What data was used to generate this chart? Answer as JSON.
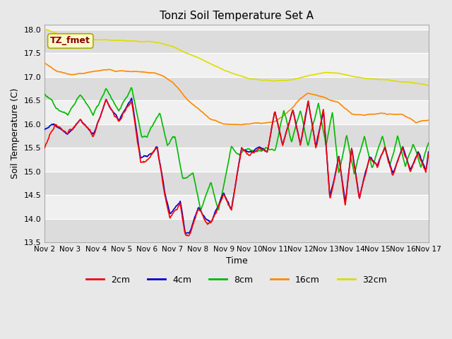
{
  "title": "Tonzi Soil Temperature Set A",
  "xlabel": "Time",
  "ylabel": "Soil Temperature (C)",
  "ylim": [
    13.5,
    18.1
  ],
  "annotation_text": "TZ_fmet",
  "annotation_color": "#8B0000",
  "annotation_bg": "#FFFACD",
  "annotation_border": "#AAAA00",
  "series_labels": [
    "2cm",
    "4cm",
    "8cm",
    "16cm",
    "32cm"
  ],
  "series_colors": [
    "#FF0000",
    "#0000CC",
    "#00BB00",
    "#FF8800",
    "#DDDD00"
  ],
  "xtick_labels": [
    "Nov 2",
    "Nov 3",
    "Nov 4",
    "Nov 5",
    "Nov 6",
    "Nov 7",
    "Nov 8",
    "Nov 9",
    "Nov 10",
    "Nov 11",
    "Nov 12",
    "Nov 13",
    "Nov 14",
    "Nov 15",
    "Nov 16",
    "Nov 17"
  ],
  "ytick_labels": [
    "13.5",
    "14.0",
    "14.5",
    "15.0",
    "15.5",
    "16.0",
    "16.5",
    "17.0",
    "17.5",
    "18.0"
  ],
  "ytick_vals": [
    13.5,
    14.0,
    14.5,
    15.0,
    15.5,
    16.0,
    16.5,
    17.0,
    17.5,
    18.0
  ],
  "bg_color": "#E8E8E8",
  "plot_bg_color": "#F0F0F0",
  "alternating_bg1": "#DCDCDC",
  "alternating_bg2": "#F0F0F0",
  "linewidth": 1.2
}
